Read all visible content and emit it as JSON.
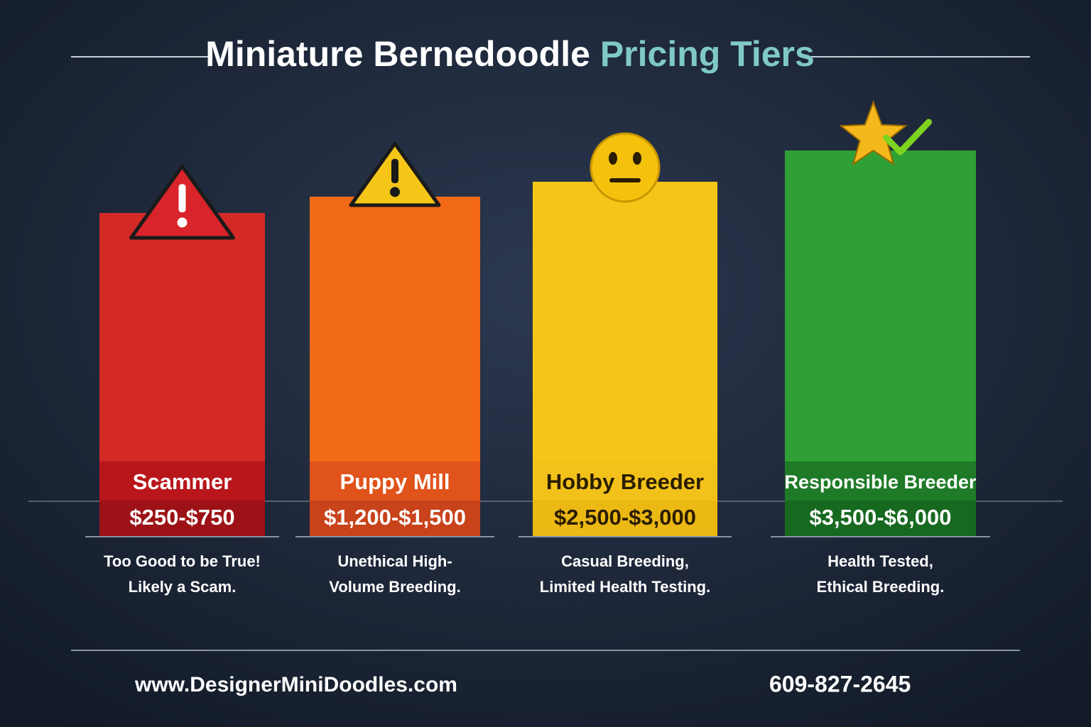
{
  "title": {
    "main": "Miniature Bernedoodle",
    "accent": "Pricing Tiers"
  },
  "tiers": [
    {
      "name": "Scammer",
      "price": "$250-$750",
      "description": [
        "Too Good to be True!",
        "Likely a Scam."
      ]
    },
    {
      "name": "Puppy Mill",
      "price": "$1,200-$1,500",
      "description": [
        "Unethical High-",
        "Volume Breeding."
      ]
    },
    {
      "name": "Hobby Breeder",
      "price": "$2,500-$3,000",
      "description": [
        "Casual Breeding,",
        "Limited Health Testing."
      ]
    },
    {
      "name": "Responsible Breeder",
      "price": "$3,500-$6,000",
      "description": [
        "Health Tested,",
        "Ethical Breeding."
      ]
    }
  ],
  "footer": {
    "website": "www.DesignerMiniDoodles.com",
    "phone": "609-827-2645"
  }
}
